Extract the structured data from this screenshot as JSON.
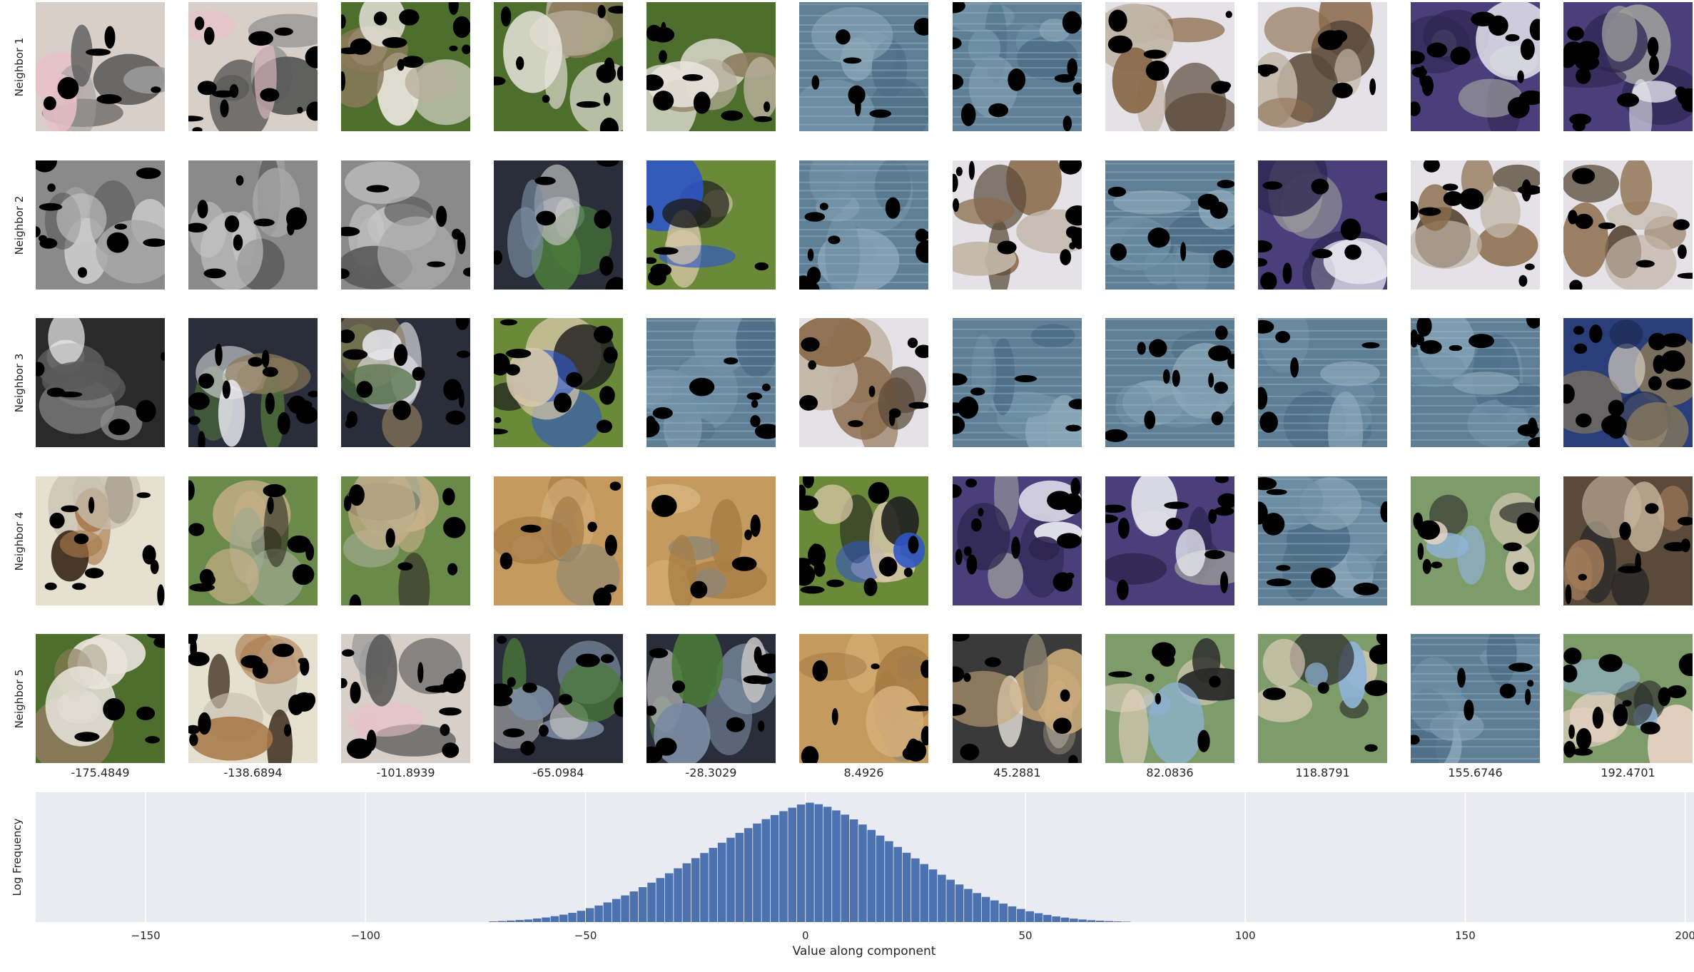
{
  "row_labels": [
    "Neighbor 1",
    "Neighbor 2",
    "Neighbor 3",
    "Neighbor 4",
    "Neighbor 5"
  ],
  "column_values": [
    "-175.4849",
    "-138.6894",
    "-101.8939",
    "-65.0984",
    "-28.3029",
    "8.4926",
    "45.2881",
    "82.0836",
    "118.8791",
    "155.6746",
    "192.4701"
  ],
  "thumbnails": [
    [
      "shaggy dog face",
      "shaggy dog face",
      "white terrier on grass",
      "white terrier on grass",
      "white terrier on grass",
      "water surface",
      "water surface",
      "fluffy dog held by hand",
      "fluffy dog held by hand",
      "woman in purple jacket",
      "woman in purple jacket"
    ],
    [
      "grayscale terrier",
      "grayscale terrier",
      "grayscale terrier",
      "merle shepherd on grass",
      "dogs playing on grass",
      "water surface",
      "fluffy dog held by hand",
      "water surface",
      "woman in purple jacket",
      "fluffy dog held by hand",
      "fluffy dog held by hand"
    ],
    [
      "dark dog face",
      "dark dog with white dog",
      "dark dog with white dog",
      "dogs playing on grass",
      "water surface",
      "fluffy dog held by hand",
      "water surface",
      "water surface",
      "water surface",
      "water surface",
      "person in graduation gown"
    ],
    [
      "two dogs close up",
      "dog legs on grass",
      "dog legs on grass",
      "golden puppy",
      "golden puppy",
      "dogs playing on grass",
      "woman in purple jacket",
      "woman in purple jacket",
      "water surface",
      "smiling woman",
      "monkey"
    ],
    [
      "white terrier lying on grass",
      "two dogs close up",
      "shaggy dog face",
      "merle shepherd on grass",
      "merle shepherd on grass",
      "golden puppy",
      "cat on blanket",
      "smiling woman",
      "smiling woman",
      "water surface",
      "smiling woman"
    ]
  ],
  "chart_data": {
    "type": "bar",
    "xlabel": "Value along component",
    "ylabel": "Log Frequency",
    "xlim": [
      -175,
      202
    ],
    "x_ticks": [
      -150,
      -100,
      -50,
      0,
      50,
      100,
      150,
      200
    ],
    "x_tick_labels": [
      "−150",
      "−100",
      "−50",
      "0",
      "50",
      "100",
      "150",
      "200"
    ],
    "grid": true,
    "bar_color": "#4c72b0",
    "bins": [
      {
        "x": -71,
        "y": 0.5
      },
      {
        "x": -69,
        "y": 0.8
      },
      {
        "x": -67,
        "y": 1.2
      },
      {
        "x": -65,
        "y": 1.6
      },
      {
        "x": -63,
        "y": 2
      },
      {
        "x": -61,
        "y": 2.8
      },
      {
        "x": -59,
        "y": 3.6
      },
      {
        "x": -57,
        "y": 4.6
      },
      {
        "x": -55,
        "y": 5.8
      },
      {
        "x": -53,
        "y": 7.2
      },
      {
        "x": -51,
        "y": 8.8
      },
      {
        "x": -49,
        "y": 10.8
      },
      {
        "x": -47,
        "y": 12.9
      },
      {
        "x": -45,
        "y": 15.3
      },
      {
        "x": -43,
        "y": 18
      },
      {
        "x": -41,
        "y": 20.8
      },
      {
        "x": -39,
        "y": 23.9
      },
      {
        "x": -37,
        "y": 27.2
      },
      {
        "x": -35,
        "y": 30.7
      },
      {
        "x": -33,
        "y": 34.3
      },
      {
        "x": -31,
        "y": 38
      },
      {
        "x": -29,
        "y": 41.9
      },
      {
        "x": -27,
        "y": 45.8
      },
      {
        "x": -25,
        "y": 49.8
      },
      {
        "x": -23,
        "y": 53.8
      },
      {
        "x": -21,
        "y": 57.8
      },
      {
        "x": -19,
        "y": 61.8
      },
      {
        "x": -17,
        "y": 65.7
      },
      {
        "x": -15,
        "y": 69.5
      },
      {
        "x": -13,
        "y": 73.2
      },
      {
        "x": -11,
        "y": 76.8
      },
      {
        "x": -9,
        "y": 80.2
      },
      {
        "x": -7,
        "y": 83.4
      },
      {
        "x": -5,
        "y": 86.4
      },
      {
        "x": -3,
        "y": 89.1
      },
      {
        "x": -1,
        "y": 91.6
      },
      {
        "x": 1,
        "y": 93
      },
      {
        "x": 3,
        "y": 91.8
      },
      {
        "x": 5,
        "y": 89.8
      },
      {
        "x": 7,
        "y": 87
      },
      {
        "x": 9,
        "y": 83.7
      },
      {
        "x": 11,
        "y": 80
      },
      {
        "x": 13,
        "y": 76
      },
      {
        "x": 15,
        "y": 71.8
      },
      {
        "x": 17,
        "y": 67.4
      },
      {
        "x": 19,
        "y": 63
      },
      {
        "x": 21,
        "y": 58.5
      },
      {
        "x": 23,
        "y": 54
      },
      {
        "x": 25,
        "y": 49.6
      },
      {
        "x": 27,
        "y": 45.2
      },
      {
        "x": 29,
        "y": 41
      },
      {
        "x": 31,
        "y": 36.9
      },
      {
        "x": 33,
        "y": 33
      },
      {
        "x": 35,
        "y": 29.3
      },
      {
        "x": 37,
        "y": 25.8
      },
      {
        "x": 39,
        "y": 22.6
      },
      {
        "x": 41,
        "y": 19.6
      },
      {
        "x": 43,
        "y": 16.9
      },
      {
        "x": 45,
        "y": 14.4
      },
      {
        "x": 47,
        "y": 12.2
      },
      {
        "x": 49,
        "y": 10.2
      },
      {
        "x": 51,
        "y": 8.4
      },
      {
        "x": 53,
        "y": 6.9
      },
      {
        "x": 55,
        "y": 5.6
      },
      {
        "x": 57,
        "y": 4.4
      },
      {
        "x": 59,
        "y": 3.5
      },
      {
        "x": 61,
        "y": 2.7
      },
      {
        "x": 63,
        "y": 2
      },
      {
        "x": 65,
        "y": 1.5
      },
      {
        "x": 67,
        "y": 1.1
      },
      {
        "x": 69,
        "y": 0.8
      },
      {
        "x": 71,
        "y": 0.5
      },
      {
        "x": 73,
        "y": 0.3
      }
    ],
    "bin_width": 2,
    "y_max": 100
  }
}
